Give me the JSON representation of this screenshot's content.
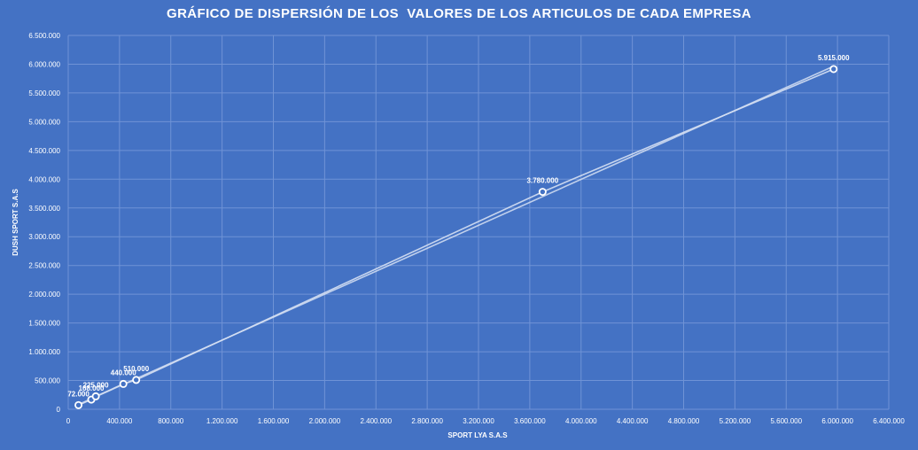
{
  "chart_data": {
    "type": "scatter",
    "title": "GRÁFICO DE DISPERSIÓN DE LOS  VALORES DE LOS ARTICULOS DE CADA EMPRESA",
    "xlabel": "SPORT LYA S.A.S",
    "ylabel": "DUSH SPORT S.A.S",
    "xlim": [
      0,
      6400000
    ],
    "ylim": [
      0,
      6500000
    ],
    "x_ticks": [
      0,
      400000,
      800000,
      1200000,
      1600000,
      2000000,
      2400000,
      2800000,
      3200000,
      3600000,
      4000000,
      4400000,
      4800000,
      5200000,
      5600000,
      6000000,
      6400000
    ],
    "x_tick_labels": [
      "0",
      "400.000",
      "800.000",
      "1.200.000",
      "1.600.000",
      "2.000.000",
      "2.400.000",
      "2.800.000",
      "3.200.000",
      "3.600.000",
      "4.000.000",
      "4.400.000",
      "4.800.000",
      "5.200.000",
      "5.600.000",
      "6.000.000",
      "6.400.000"
    ],
    "y_ticks": [
      0,
      500000,
      1000000,
      1500000,
      2000000,
      2500000,
      3000000,
      3500000,
      4000000,
      4500000,
      5000000,
      5500000,
      6000000,
      6500000
    ],
    "y_tick_labels": [
      "0",
      "500.000",
      "1.000.000",
      "1.500.000",
      "2.000.000",
      "2.500.000",
      "3.000.000",
      "3.500.000",
      "4.000.000",
      "4.500.000",
      "5.000.000",
      "5.500.000",
      "6.000.000",
      "6.500.000"
    ],
    "grid": true,
    "connected_line": true,
    "trendline": true,
    "points": [
      {
        "x": 80000,
        "y": 72000,
        "label": "72.000"
      },
      {
        "x": 180000,
        "y": 168000,
        "label": "168.000"
      },
      {
        "x": 215000,
        "y": 225000,
        "label": "225.000"
      },
      {
        "x": 430000,
        "y": 440000,
        "label": "440.000"
      },
      {
        "x": 530000,
        "y": 510000,
        "label": "510.000"
      },
      {
        "x": 3700000,
        "y": 3780000,
        "label": "3.780.000"
      },
      {
        "x": 5970000,
        "y": 5915000,
        "label": "5.915.000"
      }
    ],
    "colors": {
      "background": "#4472c4",
      "gridline": "#6f93d6",
      "line": "#d6e0f3",
      "marker_stroke": "#ffffff",
      "marker_fill": "#4472c4"
    }
  }
}
